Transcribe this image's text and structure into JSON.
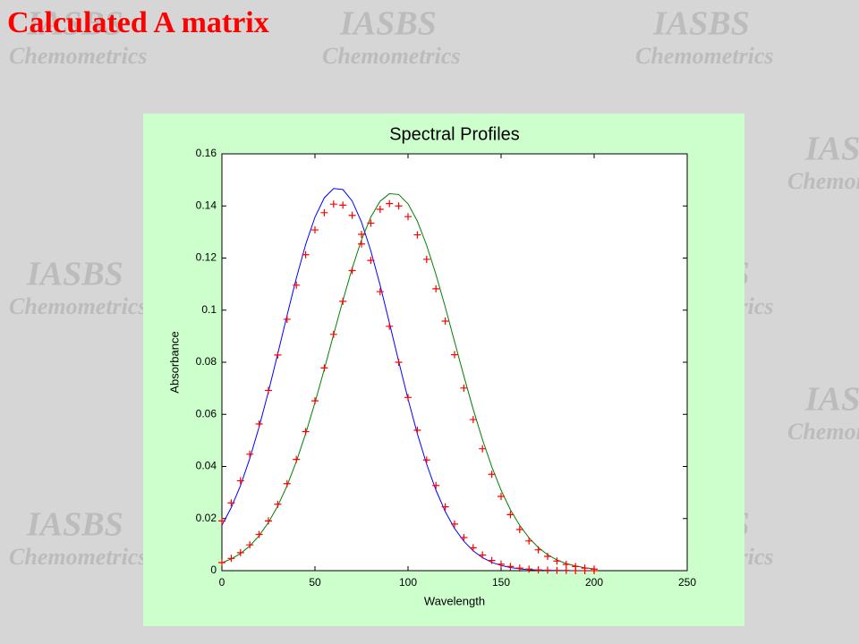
{
  "slide_title": "Calculated A matrix",
  "watermark": {
    "logo": "IASBS",
    "text": "Chemometrics"
  },
  "chart_data": {
    "type": "line",
    "title": "Spectral Profiles",
    "x_label": "Wavelength",
    "y_label": "Absorbance",
    "x": [
      0,
      5,
      10,
      15,
      20,
      25,
      30,
      35,
      40,
      45,
      50,
      55,
      60,
      65,
      70,
      75,
      80,
      85,
      90,
      95,
      100,
      105,
      110,
      115,
      120,
      125,
      130,
      135,
      140,
      145,
      150,
      155,
      160,
      165,
      170,
      175,
      180,
      185,
      190,
      195,
      200
    ],
    "series": [
      {
        "color": "#0000ff",
        "values": [
          0.0174,
          0.0242,
          0.0327,
          0.0431,
          0.0552,
          0.0687,
          0.0832,
          0.098,
          0.1123,
          0.1252,
          0.1357,
          0.1431,
          0.1467,
          0.1463,
          0.1419,
          0.1338,
          0.1228,
          0.1096,
          0.0951,
          0.0803,
          0.0659,
          0.0526,
          0.0409,
          0.0309,
          0.0227,
          0.0162,
          0.0113,
          0.0076,
          0.005,
          0.0032,
          0.002,
          0.0012,
          0.0007,
          0.0004,
          0.0002,
          0.0001,
          0.0001,
          0,
          0,
          0,
          0
        ]
      },
      {
        "color": "#008000",
        "values": [
          0.003,
          0.0045,
          0.0066,
          0.0095,
          0.0134,
          0.0185,
          0.0248,
          0.0326,
          0.0419,
          0.0526,
          0.0645,
          0.0773,
          0.0906,
          0.1037,
          0.1161,
          0.127,
          0.1357,
          0.1418,
          0.1447,
          0.1444,
          0.1408,
          0.1342,
          0.1249,
          0.1137,
          0.1012,
          0.0879,
          0.0747,
          0.062,
          0.0503,
          0.0399,
          0.0309,
          0.0234,
          0.0174,
          0.0126,
          0.0089,
          0.0061,
          0.0041,
          0.0027,
          0.0018,
          0.0011,
          0.0007
        ]
      },
      {
        "color": "#ff0000",
        "marker": "+",
        "values": [
          0.0191,
          0.026,
          0.0345,
          0.0447,
          0.0563,
          0.0692,
          0.0828,
          0.0965,
          0.1096,
          0.1213,
          0.1308,
          0.1374,
          0.1407,
          0.1403,
          0.1364,
          0.1291,
          0.1191,
          0.1071,
          0.0938,
          0.08,
          0.0665,
          0.0539,
          0.0425,
          0.0327,
          0.0245,
          0.0179,
          0.0127,
          0.0088,
          0.006,
          0.0039,
          0.0025,
          0.0016,
          0.001,
          0.0006,
          0.0003,
          0.0002,
          0.0001,
          0.0001,
          0,
          0,
          0
        ]
      },
      {
        "color": "#ff0000",
        "marker": "+",
        "values": [
          0.0031,
          0.0047,
          0.0069,
          0.0099,
          0.0139,
          0.0191,
          0.0255,
          0.0334,
          0.0427,
          0.0534,
          0.0652,
          0.0778,
          0.0907,
          0.1034,
          0.1152,
          0.1254,
          0.1334,
          0.1387,
          0.1409,
          0.14,
          0.1359,
          0.1289,
          0.1195,
          0.1082,
          0.0958,
          0.0829,
          0.0701,
          0.058,
          0.0468,
          0.037,
          0.0285,
          0.0215,
          0.0158,
          0.0114,
          0.008,
          0.0055,
          0.0037,
          0.0024,
          0.0016,
          0.001,
          0.0006
        ]
      }
    ],
    "xlim": [
      0,
      250
    ],
    "xticks": [
      0,
      50,
      100,
      150,
      200,
      250
    ],
    "ylim": [
      0,
      0.16
    ],
    "yticks": [
      0,
      0.02,
      0.04,
      0.06,
      0.08,
      0.1,
      0.12,
      0.14,
      0.16
    ]
  }
}
